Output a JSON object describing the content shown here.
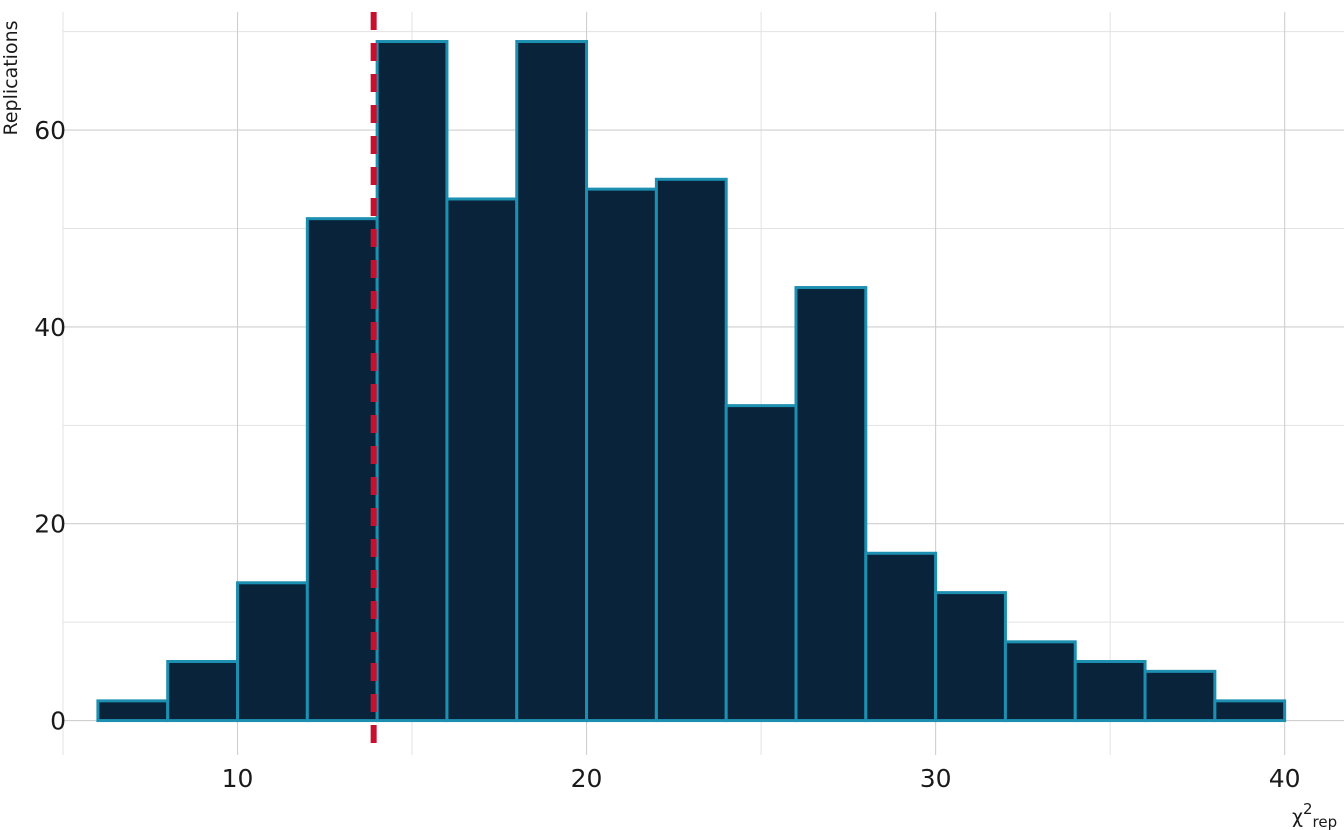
{
  "chart_data": {
    "type": "bar",
    "subtype": "histogram",
    "xlabel": "χ",
    "xlabel_sup": "2",
    "xlabel_sub": "rep",
    "ylabel": "Replications",
    "xlim": [
      5,
      41.7
    ],
    "ylim": [
      -3.5,
      72
    ],
    "x_ticks": [
      10,
      20,
      30,
      40
    ],
    "y_ticks": [
      0,
      20,
      40,
      60
    ],
    "x_minor": [
      5,
      15,
      25,
      35
    ],
    "y_minor": [
      10,
      30,
      50,
      70
    ],
    "grid": true,
    "bins": [
      {
        "start": 6,
        "end": 8,
        "count": 2
      },
      {
        "start": 8,
        "end": 10,
        "count": 6
      },
      {
        "start": 10,
        "end": 12,
        "count": 14
      },
      {
        "start": 12,
        "end": 14,
        "count": 51
      },
      {
        "start": 14,
        "end": 16,
        "count": 69
      },
      {
        "start": 16,
        "end": 18,
        "count": 53
      },
      {
        "start": 18,
        "end": 20,
        "count": 69
      },
      {
        "start": 20,
        "end": 22,
        "count": 54
      },
      {
        "start": 22,
        "end": 24,
        "count": 55
      },
      {
        "start": 24,
        "end": 26,
        "count": 32
      },
      {
        "start": 26,
        "end": 28,
        "count": 44
      },
      {
        "start": 28,
        "end": 30,
        "count": 17
      },
      {
        "start": 30,
        "end": 32,
        "count": 13
      },
      {
        "start": 32,
        "end": 34,
        "count": 8
      },
      {
        "start": 34,
        "end": 36,
        "count": 6
      },
      {
        "start": 36,
        "end": 38,
        "count": 5
      },
      {
        "start": 38,
        "end": 40,
        "count": 2
      }
    ],
    "reference_line_x": 13.9,
    "colors": {
      "bar_fill": "#08233a",
      "bar_outline": "#1d8fb0",
      "reference_line": "#c8102e"
    }
  }
}
